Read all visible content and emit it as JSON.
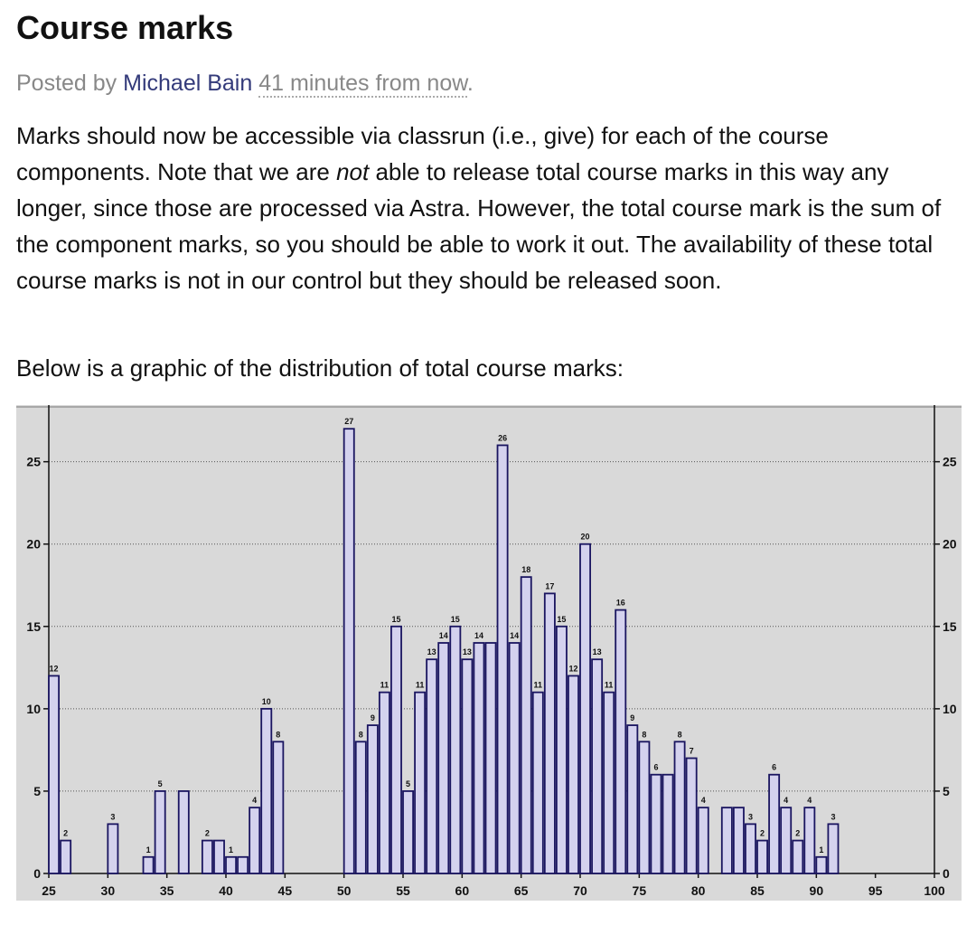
{
  "post": {
    "title": "Course marks",
    "posted_by_prefix": "Posted by ",
    "author": "Michael Bain",
    "time": "41 minutes from now",
    "period": ".",
    "para1_a": "Marks should now be accessible via classrun (i.e., give) for each of the course components. Note that we are ",
    "para1_em": "not",
    "para1_b": " able to release total course marks in this way any longer, since those are processed via Astra. However, the total course mark is the sum of the component marks, so you should be able to work it out. The availability of these total course marks is not in our control but they should be released soon.",
    "para2": "Below is a graphic of the distribution of total course marks:"
  },
  "chart_data": {
    "type": "bar",
    "title": "",
    "xlabel": "",
    "ylabel": "",
    "xlim": [
      25,
      100
    ],
    "ylim": [
      0,
      28
    ],
    "xticks": [
      25,
      30,
      35,
      40,
      45,
      50,
      55,
      60,
      65,
      70,
      75,
      80,
      85,
      90,
      95,
      100
    ],
    "yticks": [
      0,
      5,
      10,
      15,
      20,
      25
    ],
    "grid": "horizontal dotted",
    "colors": {
      "bar_fill": "#d4d2ee",
      "bar_stroke": "#1a1560",
      "background": "#d9d9d9"
    },
    "x": [
      25,
      26,
      30,
      33,
      34,
      36,
      38,
      39,
      40,
      41,
      42,
      43,
      44,
      50,
      51,
      52,
      53,
      54,
      55,
      56,
      57,
      58,
      59,
      60,
      61,
      62,
      63,
      64,
      65,
      66,
      67,
      68,
      69,
      70,
      71,
      72,
      73,
      74,
      75,
      76,
      77,
      78,
      79,
      80,
      82,
      83,
      84,
      85,
      86,
      87,
      88,
      89,
      90,
      91
    ],
    "values": [
      12,
      2,
      3,
      1,
      5,
      5,
      2,
      2,
      1,
      1,
      4,
      10,
      8,
      27,
      8,
      9,
      11,
      15,
      5,
      11,
      13,
      14,
      15,
      13,
      14,
      14,
      26,
      14,
      18,
      11,
      17,
      15,
      12,
      20,
      13,
      11,
      16,
      9,
      8,
      6,
      6,
      8,
      7,
      4,
      4,
      4,
      3,
      2,
      6,
      4,
      2,
      4,
      1,
      3
    ],
    "labels": [
      "12",
      "2",
      "3",
      "1",
      "5",
      "",
      "2",
      "",
      "1",
      "",
      "4",
      "10",
      "8",
      "27",
      "8",
      "9",
      "11",
      "15",
      "5",
      "11",
      "13",
      "14",
      "15",
      "13",
      "14",
      "",
      "26",
      "14",
      "18",
      "11",
      "17",
      "15",
      "12",
      "20",
      "13",
      "11",
      "16",
      "9",
      "8",
      "6",
      "",
      "8",
      "7",
      "4",
      "",
      "",
      "3",
      "2",
      "6",
      "4",
      "2",
      "4",
      "1",
      "3"
    ]
  }
}
